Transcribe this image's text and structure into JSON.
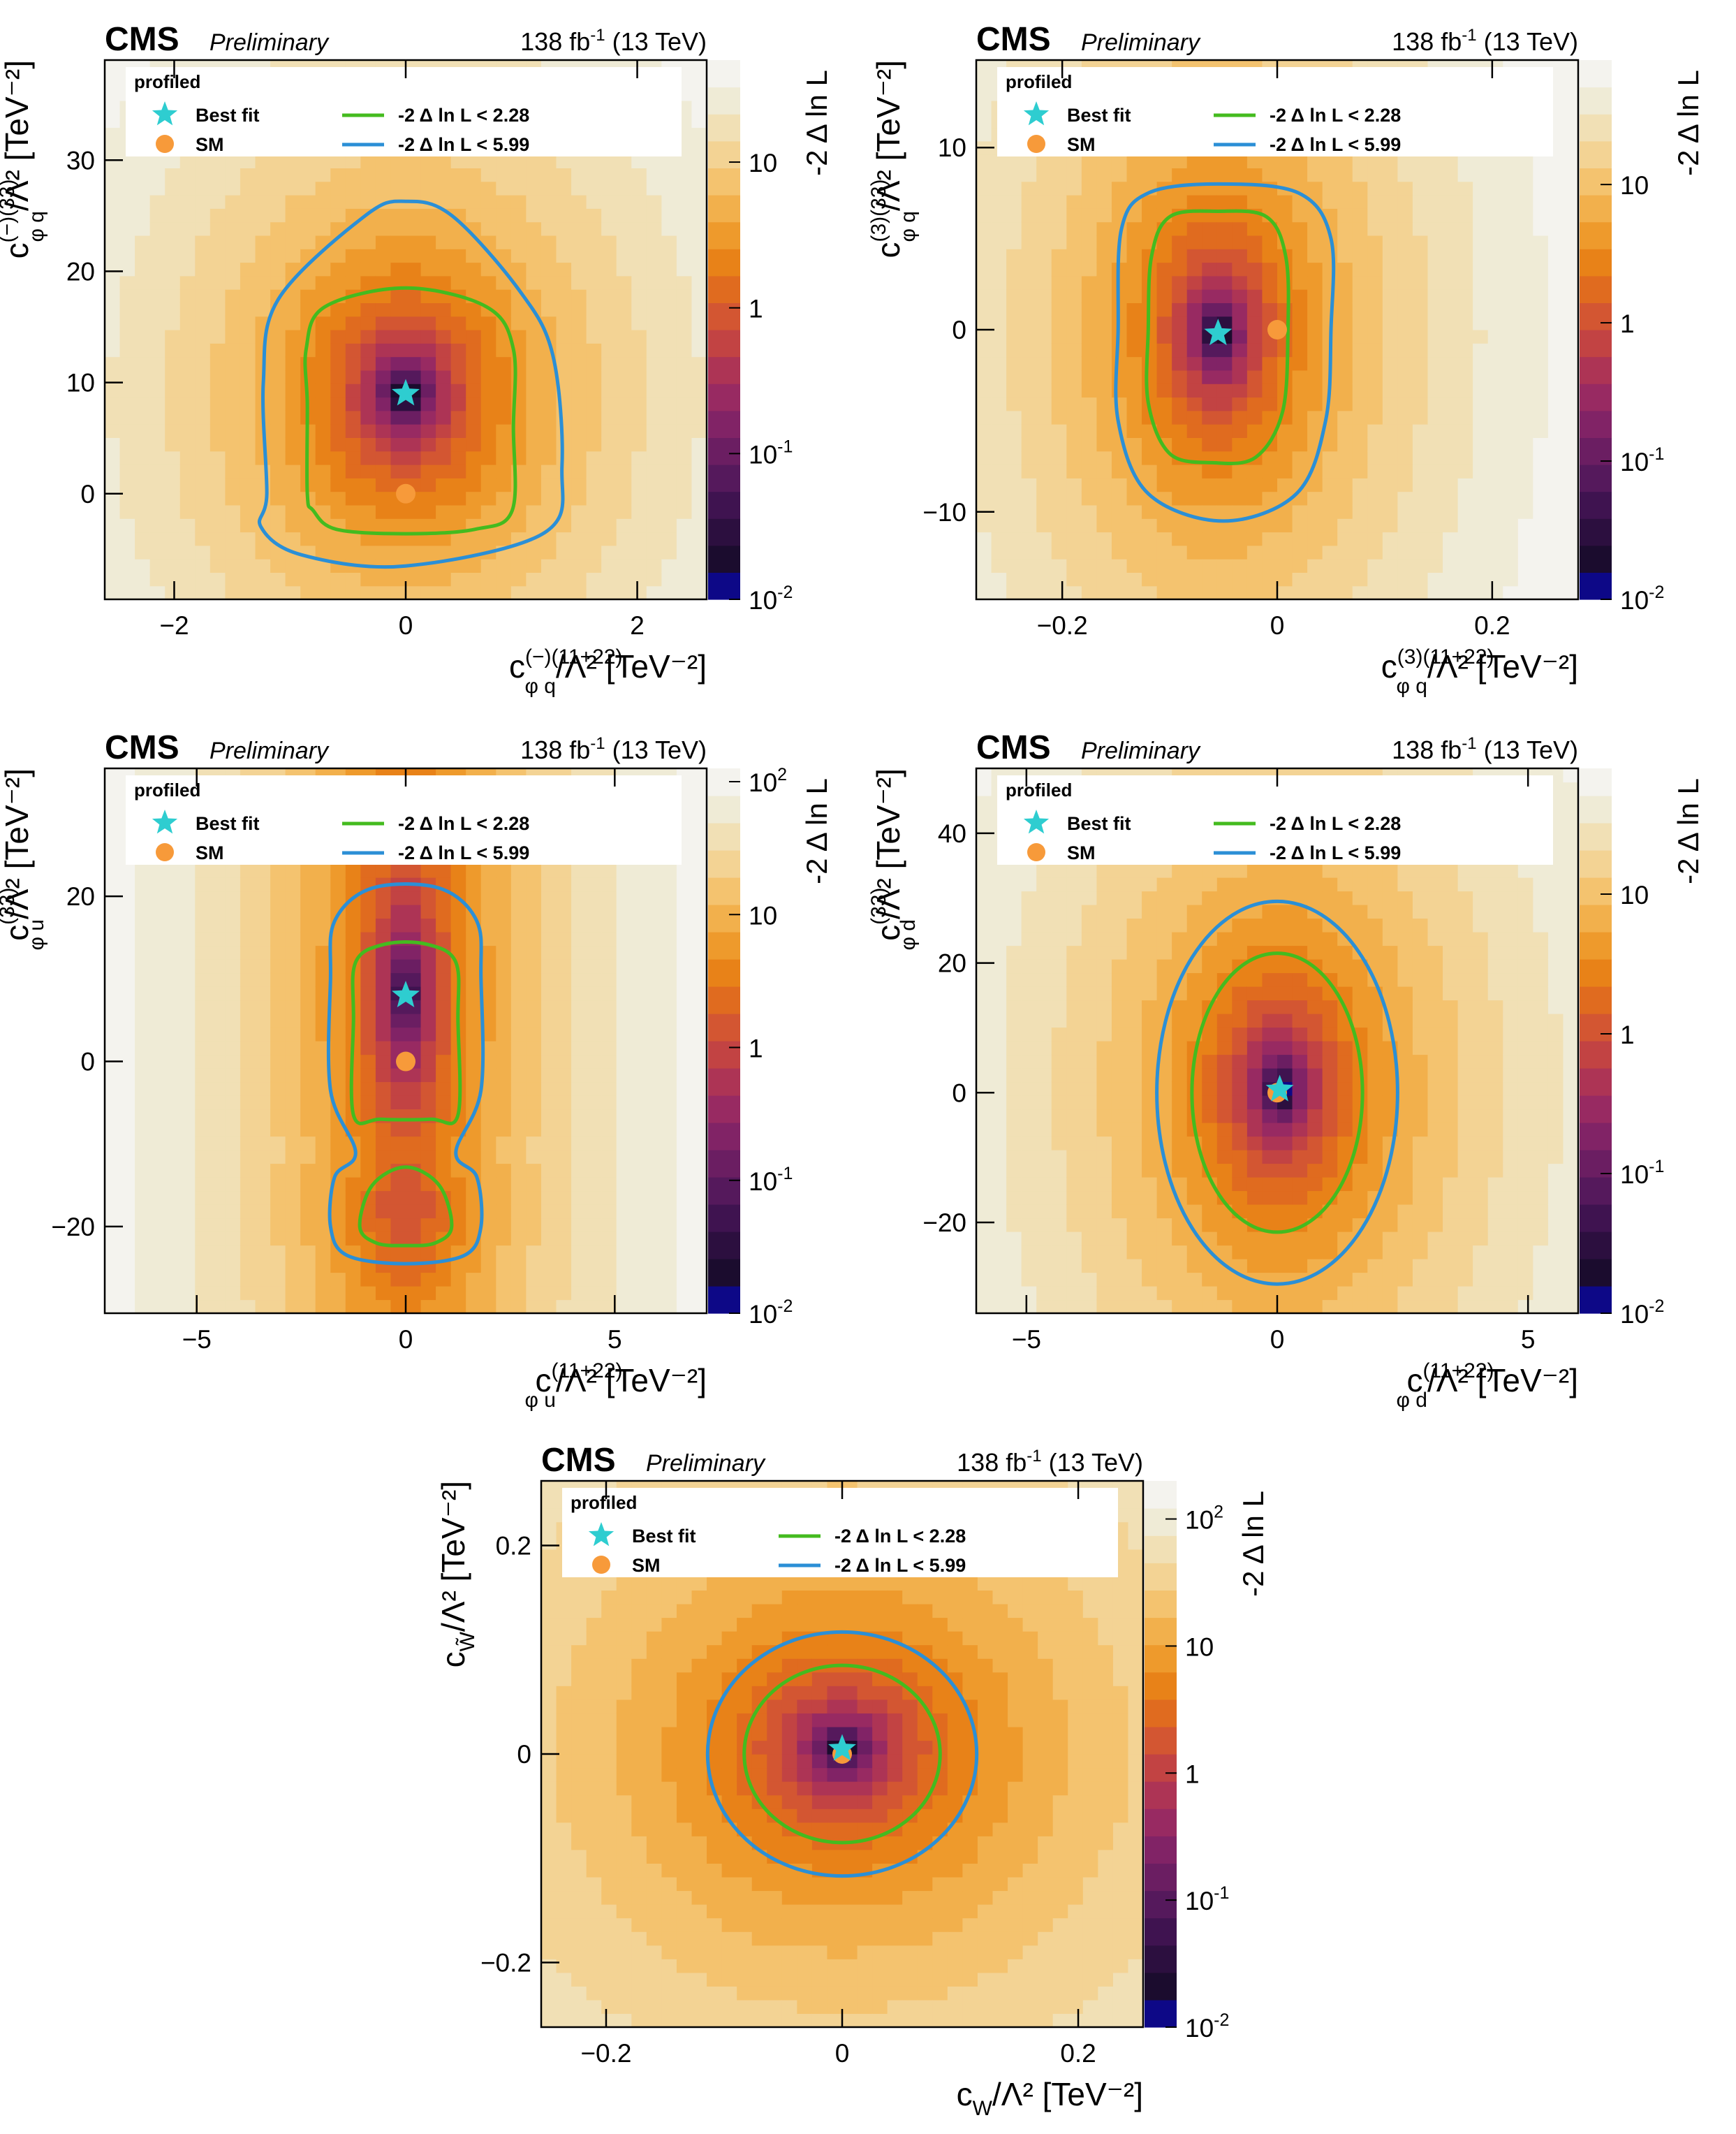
{
  "colors": {
    "colormap": [
      "#0d0887",
      "#1b0c2e",
      "#2c0f3f",
      "#3f1350",
      "#55195c",
      "#6b1e62",
      "#812366",
      "#982a62",
      "#ad3455",
      "#c24343",
      "#d35632",
      "#e06b1f",
      "#e88218",
      "#ee9a2c",
      "#f2b04c",
      "#f4c36f",
      "#f3d394",
      "#f1e0b5",
      "#efebd6",
      "#f4f3ee"
    ],
    "cl68": "#44bb1f",
    "cl95": "#2b8fd6",
    "best_fit": "#2ecdd0",
    "sm": "#f79a3a"
  },
  "common": {
    "experiment": "CMS",
    "status": "Preliminary",
    "luminosity": "138 fb-1 (13 TeV)",
    "lumi_value": "138 fb",
    "lumi_sup": "-1",
    "energy": "(13 TeV)",
    "z_label": "-2 Δ ln L",
    "legend": {
      "title": "profiled",
      "best_fit": "Best fit",
      "sm": "SM",
      "cl68": "-2  Δ ln L < 2.28",
      "cl95": "-2  Δ ln L < 5.99"
    }
  },
  "chart_data": [
    {
      "type": "heatmap",
      "xlabel": "c_{φq}^{(−)(11+22)}/Λ² [TeV⁻²]",
      "ylabel": "c_{φq}^{(−)(33)}/Λ² [TeV⁻²]",
      "x_label_base": "c",
      "x_label_sup": "(−)(11+22)",
      "x_label_sub": "φ q",
      "y_label_base": "c",
      "y_label_sup": "(−)(33)",
      "y_label_sub": "φ q",
      "xlim": [
        -2.6,
        2.6
      ],
      "ylim": [
        -9.5,
        39
      ],
      "xticks": [
        -2,
        0,
        2
      ],
      "yticks": [
        0,
        10,
        20,
        30
      ],
      "xtick_labels": [
        "−2",
        "0",
        "2"
      ],
      "ytick_labels": [
        "0",
        "10",
        "20",
        "30"
      ],
      "zlim_log10": [
        -2,
        1.7
      ],
      "zticks": [
        {
          "label": "10",
          "exp": "-2",
          "log10": -2
        },
        {
          "label": "10",
          "exp": "-1",
          "log10": -1
        },
        {
          "label": "1",
          "exp": "",
          "log10": 0
        },
        {
          "label": "10",
          "exp": "",
          "log10": 1
        }
      ],
      "best_fit": [
        0.0,
        9.0
      ],
      "sm": [
        0.0,
        0.0
      ],
      "contour_68": [
        [
          -0.85,
          0
        ],
        [
          -0.85,
          8
        ],
        [
          -0.86,
          13
        ],
        [
          -0.7,
          16.8
        ],
        [
          0.0,
          18.5
        ],
        [
          0.7,
          16.8
        ],
        [
          0.93,
          13
        ],
        [
          0.93,
          6
        ],
        [
          0.92,
          -1.5
        ],
        [
          0.6,
          -3.2
        ],
        [
          0.0,
          -3.6
        ],
        [
          -0.6,
          -3.2
        ],
        [
          -0.8,
          -1.5
        ]
      ],
      "contour_95": [
        [
          -1.2,
          0
        ],
        [
          -1.23,
          10
        ],
        [
          -1.1,
          17.5
        ],
        [
          -0.35,
          25
        ],
        [
          0.0,
          26.3
        ],
        [
          0.4,
          25
        ],
        [
          0.98,
          18.3
        ],
        [
          1.27,
          12.5
        ],
        [
          1.35,
          2.5
        ],
        [
          1.2,
          -3.5
        ],
        [
          0.0,
          -6.5
        ],
        [
          -0.9,
          -5.5
        ],
        [
          -1.25,
          -3
        ]
      ]
    },
    {
      "type": "heatmap",
      "xlabel": "c_{φq}^{(3)(11+22)}/Λ² [TeV⁻²]",
      "ylabel": "c_{φq}^{(3)(33)}/Λ² [TeV⁻²]",
      "x_label_base": "c",
      "x_label_sup": "(3)(11+22)",
      "x_label_sub": "φ q",
      "y_label_base": "c",
      "y_label_sup": "(3)(33)",
      "y_label_sub": "φ q",
      "xlim": [
        -0.28,
        0.28
      ],
      "ylim": [
        -14.8,
        14.8
      ],
      "xticks": [
        -0.2,
        0,
        0.2
      ],
      "yticks": [
        -10,
        0,
        10
      ],
      "xtick_labels": [
        "−0.2",
        "0",
        "0.2"
      ],
      "ytick_labels": [
        "−10",
        "0",
        "10"
      ],
      "zlim_log10": [
        -2,
        1.9
      ],
      "zticks": [
        {
          "label": "10",
          "exp": "-2",
          "log10": -2
        },
        {
          "label": "10",
          "exp": "-1",
          "log10": -1
        },
        {
          "label": "1",
          "exp": "",
          "log10": 0
        },
        {
          "label": "10",
          "exp": "",
          "log10": 1
        }
      ],
      "best_fit": [
        -0.055,
        -0.2
      ],
      "sm": [
        0.0,
        0.0
      ],
      "contour_68": [
        [
          -0.12,
          0
        ],
        [
          -0.117,
          4
        ],
        [
          -0.1,
          6.2
        ],
        [
          -0.055,
          6.5
        ],
        [
          -0.01,
          6.2
        ],
        [
          0.008,
          4
        ],
        [
          0.01,
          0
        ],
        [
          0.005,
          -4.5
        ],
        [
          -0.02,
          -7
        ],
        [
          -0.06,
          -7.3
        ],
        [
          -0.1,
          -6.8
        ],
        [
          -0.12,
          -4
        ]
      ],
      "contour_95": [
        [
          -0.148,
          0
        ],
        [
          -0.145,
          5.5
        ],
        [
          -0.12,
          7.5
        ],
        [
          -0.055,
          8
        ],
        [
          0.02,
          7.5
        ],
        [
          0.05,
          5
        ],
        [
          0.05,
          0
        ],
        [
          0.045,
          -5
        ],
        [
          0.018,
          -9
        ],
        [
          -0.05,
          -10.5
        ],
        [
          -0.12,
          -9
        ],
        [
          -0.148,
          -5
        ]
      ]
    },
    {
      "type": "heatmap",
      "xlabel": "c_{φu}^{(11+22)}/Λ² [TeV⁻²]",
      "ylabel": "c_{φu}^{(33)}/Λ² [TeV⁻²]",
      "x_label_base": "c",
      "x_label_sup": "(11+22)",
      "x_label_sub": "φ u",
      "y_label_base": "c",
      "y_label_sup": "(33)",
      "y_label_sub": "φ u",
      "xlim": [
        -7.2,
        7.2
      ],
      "ylim": [
        -30.5,
        35.5
      ],
      "xticks": [
        -5,
        0,
        5
      ],
      "yticks": [
        -20,
        0,
        20
      ],
      "xtick_labels": [
        "−5",
        "0",
        "5"
      ],
      "ytick_labels": [
        "−20",
        "0",
        "20"
      ],
      "zlim_log10": [
        -2,
        2.1
      ],
      "zticks": [
        {
          "label": "10",
          "exp": "-2",
          "log10": -2
        },
        {
          "label": "10",
          "exp": "-1",
          "log10": -1
        },
        {
          "label": "1",
          "exp": "",
          "log10": 0
        },
        {
          "label": "10",
          "exp": "",
          "log10": 1
        },
        {
          "label": "10",
          "exp": "2",
          "log10": 2
        }
      ],
      "best_fit": [
        0.0,
        8.0
      ],
      "sm": [
        0.0,
        0.0
      ],
      "contour_68": [
        [
          -1.25,
          -6.5
        ],
        [
          -1.25,
          5
        ],
        [
          -1.2,
          12
        ],
        [
          -0.5,
          14.2
        ],
        [
          0.5,
          14.2
        ],
        [
          1.2,
          12
        ],
        [
          1.25,
          5
        ],
        [
          1.25,
          -6.5
        ],
        [
          0.6,
          -7
        ],
        [
          -0.6,
          -7
        ]
      ],
      "contour_95": [
        [
          -1.8,
          -3.5
        ],
        [
          -1.8,
          10
        ],
        [
          -1.7,
          17
        ],
        [
          -0.8,
          21
        ],
        [
          0.8,
          21
        ],
        [
          1.7,
          17
        ],
        [
          1.8,
          10
        ],
        [
          1.8,
          -3.5
        ],
        [
          1.2,
          -11
        ],
        [
          1.7,
          -14
        ],
        [
          1.8,
          -20
        ],
        [
          1.4,
          -23.5
        ],
        [
          0.0,
          -24.5
        ],
        [
          -1.4,
          -23.5
        ],
        [
          -1.8,
          -20
        ],
        [
          -1.7,
          -14
        ],
        [
          -1.2,
          -11
        ]
      ],
      "contour_68b": [
        [
          -1.1,
          -20
        ],
        [
          -0.8,
          -15
        ],
        [
          0.0,
          -12.8
        ],
        [
          0.8,
          -15
        ],
        [
          1.1,
          -20
        ],
        [
          0.7,
          -22
        ],
        [
          0.0,
          -22.3
        ],
        [
          -0.7,
          -22
        ]
      ]
    },
    {
      "type": "heatmap",
      "xlabel": "c_{φd}^{(11+22)}/Λ² [TeV⁻²]",
      "ylabel": "c_{φd}^{(33)}/Λ² [TeV⁻²]",
      "x_label_base": "c",
      "x_label_sup": "(11+22)",
      "x_label_sub": "φ d",
      "y_label_base": "c",
      "y_label_sup": "(33)",
      "y_label_sub": "φ d",
      "xlim": [
        -6.0,
        6.0
      ],
      "ylim": [
        -34,
        50
      ],
      "xticks": [
        -5,
        0,
        5
      ],
      "yticks": [
        -20,
        0,
        20,
        40
      ],
      "xtick_labels": [
        "−5",
        "0",
        "5"
      ],
      "ytick_labels": [
        "−20",
        "0",
        "20",
        "40"
      ],
      "zlim_log10": [
        -2,
        1.9
      ],
      "zticks": [
        {
          "label": "10",
          "exp": "-2",
          "log10": -2
        },
        {
          "label": "10",
          "exp": "-1",
          "log10": -1
        },
        {
          "label": "1",
          "exp": "",
          "log10": 0
        },
        {
          "label": "10",
          "exp": "",
          "log10": 1
        }
      ],
      "best_fit": [
        0.05,
        0.5
      ],
      "sm": [
        0.0,
        0.0
      ],
      "contour_68": {
        "ellipse": [
          0.0,
          0.0,
          1.7,
          21.5
        ]
      },
      "contour_95": {
        "ellipse": [
          0.0,
          0.0,
          2.4,
          29.5
        ]
      }
    },
    {
      "type": "heatmap",
      "xlabel": "c_W/Λ² [TeV⁻²]",
      "ylabel": "c_W̃/Λ² [TeV⁻²]",
      "x_label_base": "c",
      "x_label_sup": "",
      "x_label_sub": "W",
      "y_label_base": "c",
      "y_label_sup": "",
      "y_label_sub": "W̃",
      "xlim": [
        -0.255,
        0.255
      ],
      "ylim": [
        -0.262,
        0.262
      ],
      "xticks": [
        -0.2,
        0,
        0.2
      ],
      "yticks": [
        -0.2,
        0,
        0.2
      ],
      "xtick_labels": [
        "−0.2",
        "0",
        "0.2"
      ],
      "ytick_labels": [
        "−0.2",
        "0",
        "0.2"
      ],
      "zlim_log10": [
        -2,
        2.3
      ],
      "zticks": [
        {
          "label": "10",
          "exp": "-2",
          "log10": -2
        },
        {
          "label": "10",
          "exp": "-1",
          "log10": -1
        },
        {
          "label": "1",
          "exp": "",
          "log10": 0
        },
        {
          "label": "10",
          "exp": "",
          "log10": 1
        },
        {
          "label": "10",
          "exp": "2",
          "log10": 2
        }
      ],
      "best_fit": [
        0.0,
        0.005
      ],
      "sm": [
        0.0,
        0.0
      ],
      "contour_68": {
        "ellipse": [
          0.0,
          0.0,
          0.083,
          0.085
        ]
      },
      "contour_95": {
        "ellipse": [
          0.0,
          0.0,
          0.114,
          0.117
        ]
      }
    }
  ]
}
